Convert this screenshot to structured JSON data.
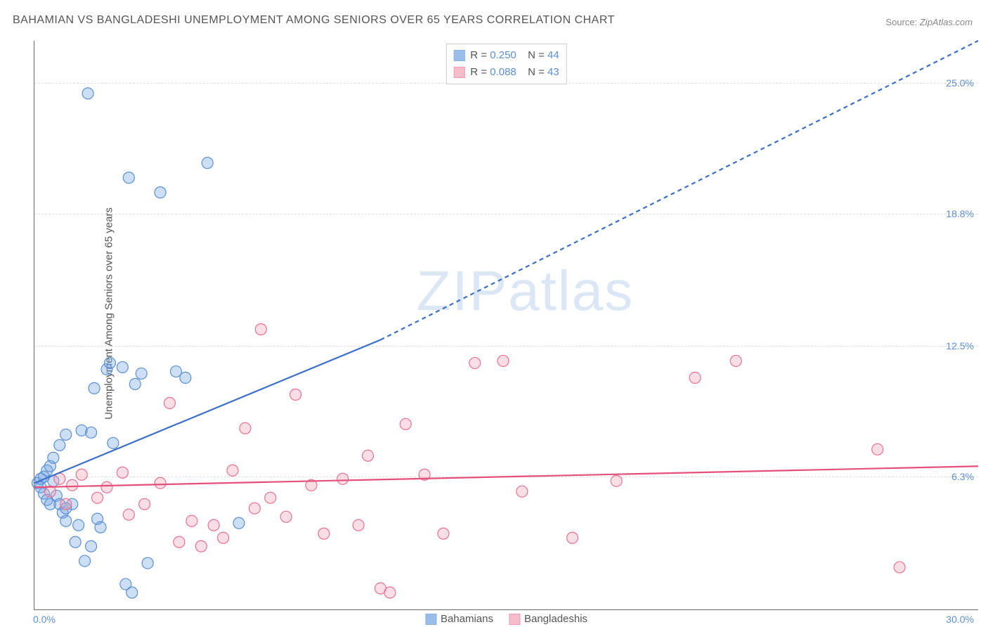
{
  "title": "BAHAMIAN VS BANGLADESHI UNEMPLOYMENT AMONG SENIORS OVER 65 YEARS CORRELATION CHART",
  "source_label": "Source:",
  "source_value": "ZipAtlas.com",
  "ylabel": "Unemployment Among Seniors over 65 years",
  "watermark": "ZIPatlas",
  "chart": {
    "type": "scatter",
    "background_color": "#ffffff",
    "grid_color": "#dddddd",
    "axis_color": "#666666",
    "xlim": [
      0,
      30
    ],
    "ylim": [
      0,
      27
    ],
    "x_origin_label": "0.0%",
    "x_end_label": "30.0%",
    "yticks": [
      {
        "value": 6.3,
        "label": "6.3%"
      },
      {
        "value": 12.5,
        "label": "12.5%"
      },
      {
        "value": 18.8,
        "label": "18.8%"
      },
      {
        "value": 25.0,
        "label": "25.0%"
      }
    ],
    "tick_color": "#5b8fd6",
    "tick_fontsize": 14,
    "marker_radius": 8,
    "marker_fill_opacity": 0.35,
    "marker_stroke_width": 1.2,
    "series": [
      {
        "name": "Bahamians",
        "color": "#6fa3e0",
        "stroke": "#5b8fd6",
        "R": "0.250",
        "N": "44",
        "trendline": {
          "solid": {
            "x1": 0,
            "y1": 6.0,
            "x2": 11,
            "y2": 12.8
          },
          "dashed": {
            "x1": 11,
            "y1": 12.8,
            "x2": 30,
            "y2": 27.0
          },
          "color": "#3b6fc9",
          "width": 2.2,
          "dash": "6,5"
        },
        "points": [
          [
            0.1,
            6.0
          ],
          [
            0.2,
            5.8
          ],
          [
            0.2,
            6.2
          ],
          [
            0.3,
            5.5
          ],
          [
            0.3,
            6.3
          ],
          [
            0.4,
            6.6
          ],
          [
            0.4,
            5.2
          ],
          [
            0.5,
            6.8
          ],
          [
            0.5,
            5.0
          ],
          [
            0.6,
            6.1
          ],
          [
            0.6,
            7.2
          ],
          [
            0.7,
            5.4
          ],
          [
            0.8,
            7.8
          ],
          [
            0.8,
            5.0
          ],
          [
            0.9,
            4.6
          ],
          [
            1.0,
            4.2
          ],
          [
            1.0,
            8.3
          ],
          [
            1.2,
            5.0
          ],
          [
            1.3,
            3.2
          ],
          [
            1.4,
            4.0
          ],
          [
            1.5,
            8.5
          ],
          [
            1.6,
            2.3
          ],
          [
            1.8,
            3.0
          ],
          [
            1.8,
            8.4
          ],
          [
            1.9,
            10.5
          ],
          [
            2.0,
            4.3
          ],
          [
            2.1,
            3.9
          ],
          [
            2.3,
            11.4
          ],
          [
            2.4,
            11.7
          ],
          [
            2.5,
            7.9
          ],
          [
            2.8,
            11.5
          ],
          [
            2.9,
            1.2
          ],
          [
            3.0,
            20.5
          ],
          [
            3.1,
            0.8
          ],
          [
            3.2,
            10.7
          ],
          [
            3.4,
            11.2
          ],
          [
            3.6,
            2.2
          ],
          [
            4.0,
            19.8
          ],
          [
            4.5,
            11.3
          ],
          [
            4.8,
            11.0
          ],
          [
            5.5,
            21.2
          ],
          [
            1.7,
            24.5
          ],
          [
            1.0,
            4.8
          ],
          [
            6.5,
            4.1
          ]
        ]
      },
      {
        "name": "Bangladeshis",
        "color": "#f2a0b4",
        "stroke": "#e97190",
        "R": "0.088",
        "N": "43",
        "trendline": {
          "solid": {
            "x1": 0,
            "y1": 5.8,
            "x2": 30,
            "y2": 6.8
          },
          "dashed": null,
          "color": "#e5507b",
          "width": 2.2,
          "dash": null
        },
        "points": [
          [
            0.5,
            5.6
          ],
          [
            0.8,
            6.2
          ],
          [
            1.0,
            5.0
          ],
          [
            1.2,
            5.9
          ],
          [
            1.5,
            6.4
          ],
          [
            2.0,
            5.3
          ],
          [
            2.3,
            5.8
          ],
          [
            2.8,
            6.5
          ],
          [
            3.0,
            4.5
          ],
          [
            3.5,
            5.0
          ],
          [
            4.0,
            6.0
          ],
          [
            4.3,
            9.8
          ],
          [
            4.6,
            3.2
          ],
          [
            5.0,
            4.2
          ],
          [
            5.3,
            3.0
          ],
          [
            5.7,
            4.0
          ],
          [
            6.0,
            3.4
          ],
          [
            6.3,
            6.6
          ],
          [
            6.7,
            8.6
          ],
          [
            7.0,
            4.8
          ],
          [
            7.2,
            13.3
          ],
          [
            7.5,
            5.3
          ],
          [
            8.0,
            4.4
          ],
          [
            8.3,
            10.2
          ],
          [
            8.8,
            5.9
          ],
          [
            9.2,
            3.6
          ],
          [
            9.8,
            6.2
          ],
          [
            10.3,
            4.0
          ],
          [
            10.6,
            7.3
          ],
          [
            11.0,
            1.0
          ],
          [
            11.3,
            0.8
          ],
          [
            11.8,
            8.8
          ],
          [
            12.4,
            6.4
          ],
          [
            13.0,
            3.6
          ],
          [
            14.0,
            11.7
          ],
          [
            14.9,
            11.8
          ],
          [
            15.5,
            5.6
          ],
          [
            17.1,
            3.4
          ],
          [
            21.0,
            11.0
          ],
          [
            22.3,
            11.8
          ],
          [
            26.8,
            7.6
          ],
          [
            27.5,
            2.0
          ],
          [
            18.5,
            6.1
          ]
        ]
      }
    ],
    "legend_labels": {
      "R_prefix": "R =",
      "N_prefix": "N ="
    }
  }
}
